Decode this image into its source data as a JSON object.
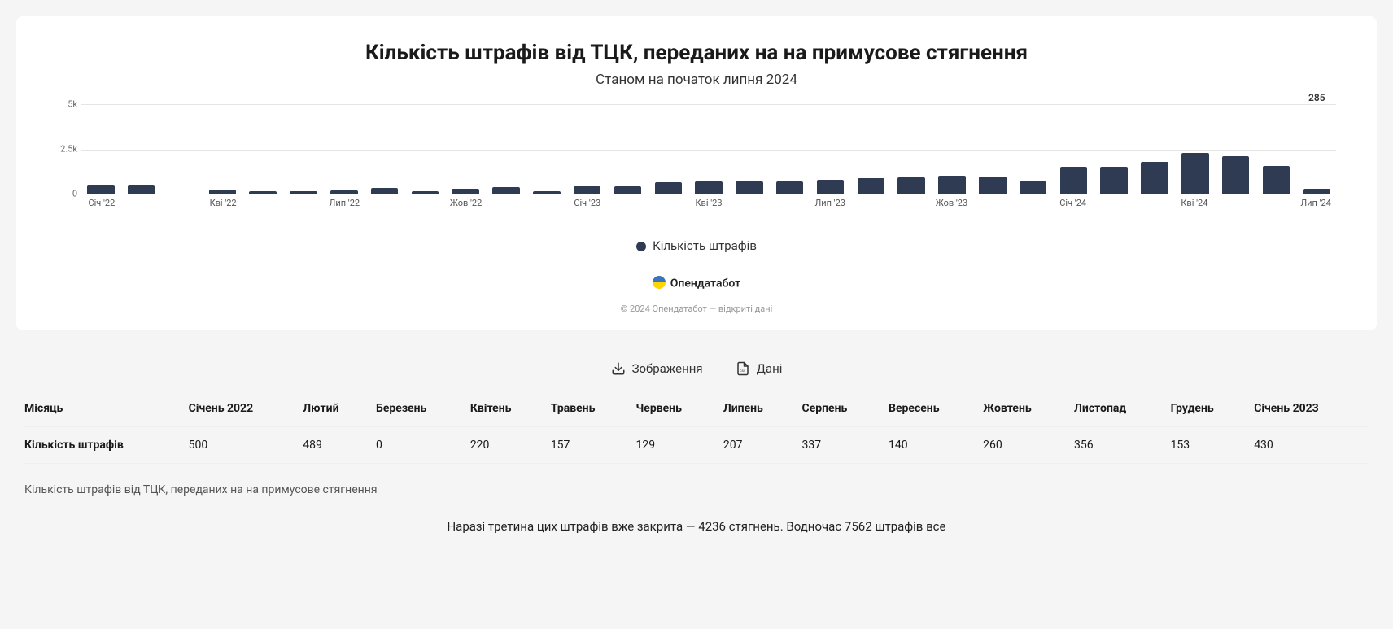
{
  "chart": {
    "type": "bar",
    "title": "Кількість штрафів від ТЦК, переданих на на примусове стягнення",
    "subtitle": "Станом на початок липня 2024",
    "bar_color": "#2f3b52",
    "background_color": "#ffffff",
    "grid_color": "#e5e5e5",
    "ylim": [
      0,
      5000
    ],
    "yticks": [
      {
        "pos": 0,
        "label": "0"
      },
      {
        "pos": 2500,
        "label": "2.5k"
      },
      {
        "pos": 5000,
        "label": "5k"
      }
    ],
    "xticks": [
      {
        "index": 0,
        "label": "Січ '22"
      },
      {
        "index": 3,
        "label": "Кві '22"
      },
      {
        "index": 6,
        "label": "Лип '22"
      },
      {
        "index": 9,
        "label": "Жов '22"
      },
      {
        "index": 12,
        "label": "Січ '23"
      },
      {
        "index": 15,
        "label": "Кві '23"
      },
      {
        "index": 18,
        "label": "Лип '23"
      },
      {
        "index": 21,
        "label": "Жов '23"
      },
      {
        "index": 24,
        "label": "Січ '24"
      },
      {
        "index": 27,
        "label": "Кві '24"
      },
      {
        "index": 30,
        "label": "Лип '24"
      }
    ],
    "values": [
      500,
      489,
      0,
      220,
      157,
      129,
      207,
      337,
      140,
      260,
      356,
      153,
      430,
      400,
      620,
      680,
      700,
      680,
      800,
      850,
      900,
      1000,
      980,
      700,
      1500,
      1520,
      1780,
      2300,
      2100,
      1550,
      285
    ],
    "end_label_index": 30,
    "end_label_value": "285",
    "legend_label": "Кількість штрафів",
    "brand": "Опендатабот",
    "copyright": "© 2024 Опендатабот — відкриті дані"
  },
  "actions": {
    "image": "Зображення",
    "data": "Дані"
  },
  "table": {
    "row_header": "Місяць",
    "metric_header": "Кількість штрафів",
    "columns": [
      "Січень 2022",
      "Лютий",
      "Березень",
      "Квітень",
      "Травень",
      "Червень",
      "Липень",
      "Серпень",
      "Вересень",
      "Жовтень",
      "Листопад",
      "Грудень",
      "Січень 2023"
    ],
    "values": [
      "500",
      "489",
      "0",
      "220",
      "157",
      "129",
      "207",
      "337",
      "140",
      "260",
      "356",
      "153",
      "430"
    ],
    "caption": "Кількість штрафів від ТЦК, переданих на на примусове стягнення"
  },
  "footer_note": "Наразі третина цих штрафів вже закрита — 4236 стягнень. Водночас 7562 штрафів все"
}
